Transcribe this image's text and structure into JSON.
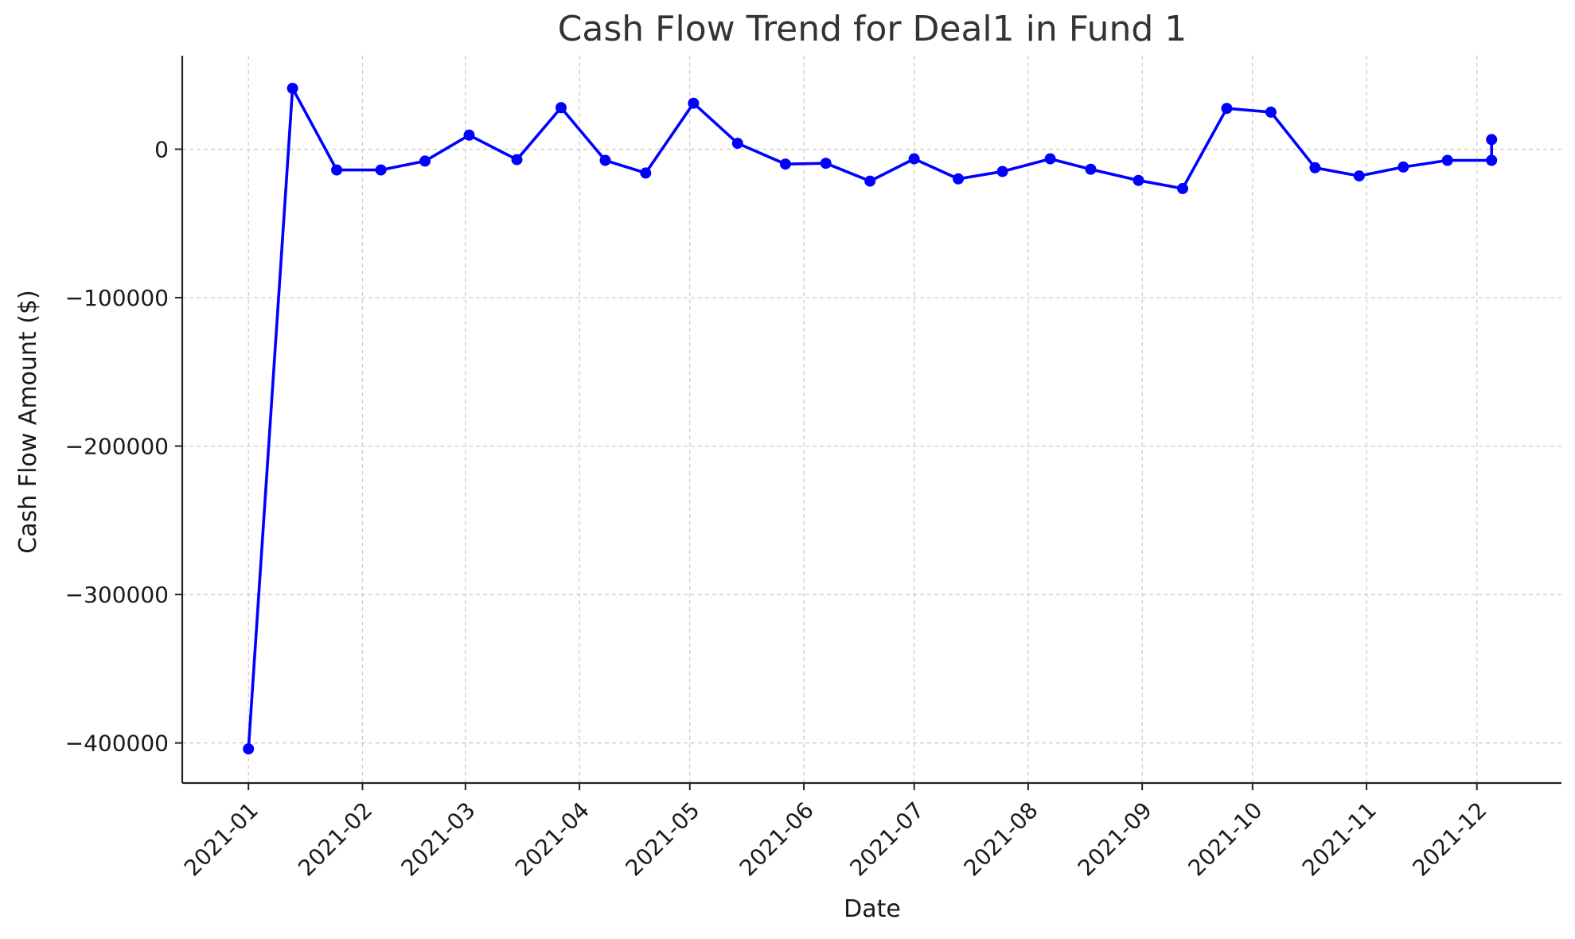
{
  "chart_data": {
    "type": "line",
    "title": "Cash Flow Trend for Deal1 in Fund 1",
    "xlabel": "Date",
    "ylabel": "Cash Flow Amount ($)",
    "x_ticks": [
      "2021-01",
      "2021-02",
      "2021-03",
      "2021-04",
      "2021-05",
      "2021-06",
      "2021-07",
      "2021-08",
      "2021-09",
      "2021-10",
      "2021-11",
      "2021-12"
    ],
    "y_ticks": [
      0,
      -100000,
      -200000,
      -300000,
      -400000
    ],
    "y_tick_labels": [
      "0",
      "−100000",
      "−200000",
      "−300000",
      "−400000"
    ],
    "xlim": [
      "2020-12-14",
      "2021-12-24"
    ],
    "ylim": [
      -427000,
      63000
    ],
    "grid": true,
    "series": [
      {
        "color": "#0000ff",
        "x": [
          "2021-01-01",
          "2021-01-13",
          "2021-01-25",
          "2021-02-06",
          "2021-02-18",
          "2021-03-02",
          "2021-03-15",
          "2021-03-27",
          "2021-04-08",
          "2021-04-19",
          "2021-05-02",
          "2021-05-14",
          "2021-05-27",
          "2021-06-07",
          "2021-06-19",
          "2021-07-01",
          "2021-07-13",
          "2021-07-25",
          "2021-08-07",
          "2021-08-18",
          "2021-08-31",
          "2021-09-12",
          "2021-09-24",
          "2021-10-06",
          "2021-10-18",
          "2021-10-30",
          "2021-11-11",
          "2021-11-23",
          "2021-12-05",
          "2021-12-05"
        ],
        "values": [
          -404000,
          41000,
          -14000,
          -14000,
          -8000,
          9500,
          -7000,
          28000,
          -7500,
          -16000,
          31000,
          4000,
          -10000,
          -9500,
          -21500,
          -6500,
          -20000,
          -15000,
          -6500,
          -13500,
          -21000,
          -26500,
          27500,
          25000,
          -12500,
          -18000,
          -12000,
          -7500,
          -7500,
          6500
        ]
      }
    ]
  }
}
